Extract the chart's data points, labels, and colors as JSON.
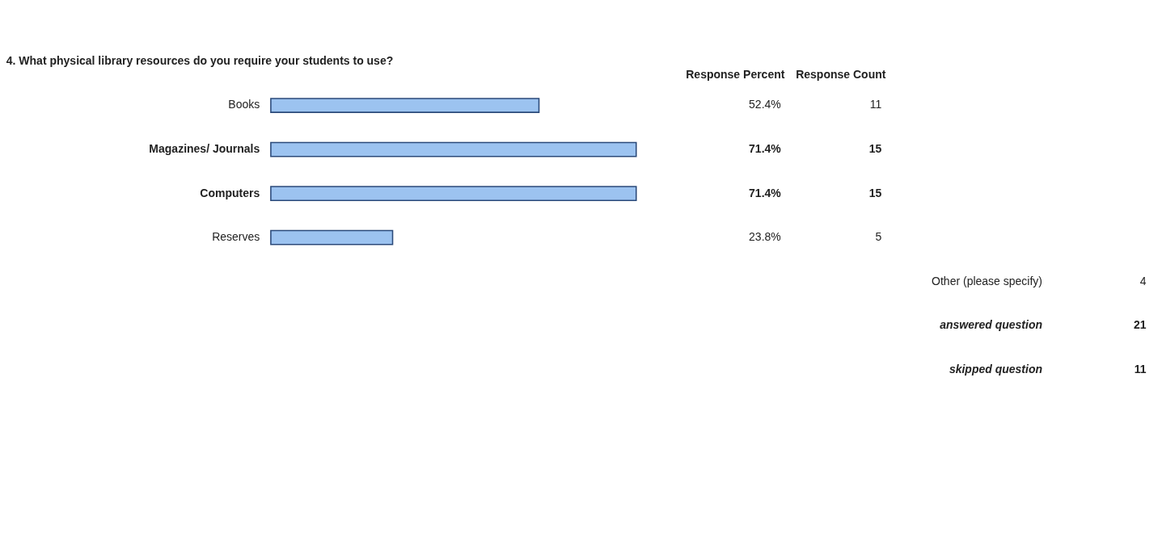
{
  "chart_data": {
    "type": "bar",
    "orientation": "horizontal",
    "title": "4. What physical library resources do you require your students to use?",
    "categories": [
      "Books",
      "Magazines/ Journals",
      "Computers",
      "Reserves"
    ],
    "values": [
      52.4,
      71.4,
      71.4,
      23.8
    ],
    "value_labels": [
      "52.4%",
      "71.4%",
      "71.4%",
      "23.8%"
    ],
    "color": "#9cc3f0",
    "tick_labels": "y",
    "annotations": [
      "Response Percent",
      "Response Count",
      "11",
      "15",
      "15",
      "5",
      "Other (please specify)",
      "4",
      "answered question",
      "21",
      "skipped question",
      "11"
    ]
  }
}
